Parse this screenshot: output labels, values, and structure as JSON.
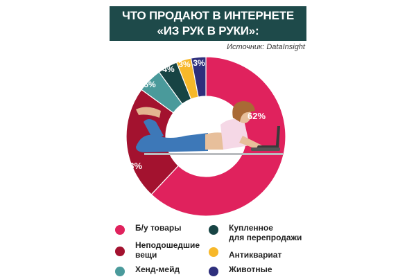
{
  "header": {
    "title_line1": "ЧТО ПРОДАЮТ В ИНТЕРНЕТЕ",
    "title_line2": "«ИЗ РУК В РУКИ»:",
    "source": "Источник: DataInsight"
  },
  "colors": {
    "title_bg": "#1e4a4a",
    "used_goods": "#e0225d",
    "unsuitable": "#a3122f",
    "handmade": "#4a9a9b",
    "resale": "#174444",
    "antiques": "#f7b82a",
    "animals": "#2e2f7c"
  },
  "legend": [
    {
      "label": "Б/у товары",
      "color": "#e0225d"
    },
    {
      "label": "Неподошедшие\nвещи",
      "color": "#a3122f"
    },
    {
      "label": "Хенд-мейд",
      "color": "#4a9a9b"
    },
    {
      "label": "Купленное\nдля перепродажи",
      "color": "#174444"
    },
    {
      "label": "Антиквариат",
      "color": "#f7b82a"
    },
    {
      "label": "Животные",
      "color": "#2e2f7c"
    }
  ],
  "chart_data": {
    "type": "pie",
    "subtype": "donut",
    "title": "ЧТО ПРОДАЮТ В ИНТЕРНЕТЕ «ИЗ РУК В РУКИ»:",
    "source": "Источник: DataInsight",
    "categories": [
      "Б/у товары",
      "Неподошедшие вещи",
      "Хенд-мейд",
      "Купленное для перепродажи",
      "Антиквариат",
      "Животные"
    ],
    "values": [
      62,
      23,
      5,
      4,
      3,
      3
    ],
    "labels": [
      "62%",
      "23%",
      "5%",
      "4%",
      "3%",
      "3%"
    ],
    "colors": [
      "#e0225d",
      "#a3122f",
      "#4a9a9b",
      "#174444",
      "#f7b82a",
      "#2e2f7c"
    ],
    "unit": "%",
    "legend_position": "bottom",
    "start_angle": "12 o'clock, clockwise"
  }
}
